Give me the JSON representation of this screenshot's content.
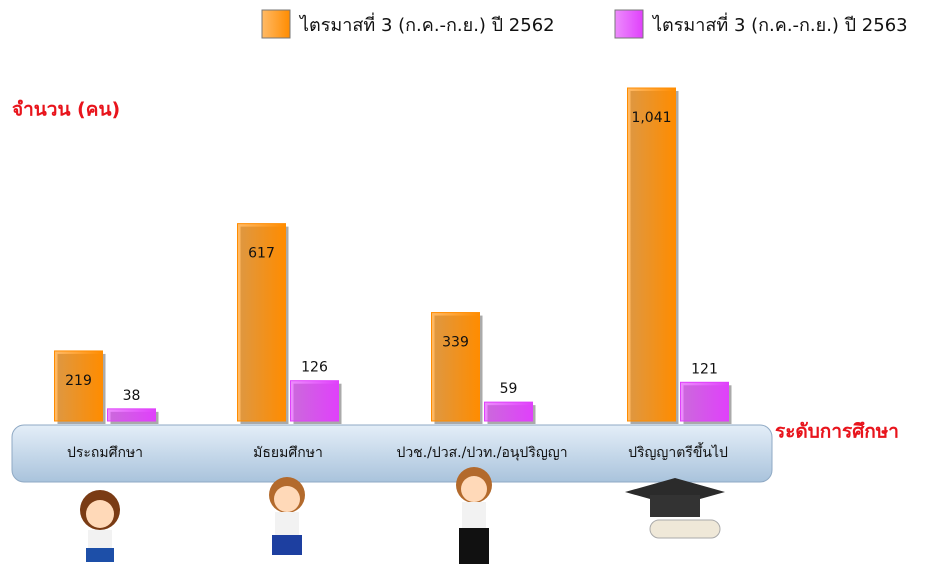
{
  "chart_data": {
    "type": "bar",
    "y_label": "จำนวน (คน)",
    "x_label": "ระดับการศึกษา",
    "categories": [
      "ประถมศึกษา",
      "มัธยมศึกษา",
      "ปวช./ปวส./ปวท./อนุปริญญา",
      "ปริญญาตรีขึ้นไป"
    ],
    "series": [
      {
        "name": "ไตรมาสที่ 3 (ก.ค.-ก.ย.) ปี 2562",
        "color": "#ff8c00",
        "values": [
          219,
          617,
          339,
          1041
        ],
        "value_labels": [
          "219",
          "617",
          "339",
          "1,041"
        ]
      },
      {
        "name": "ไตรมาสที่ 3 (ก.ค.-ก.ย.) ปี 2563",
        "color": "#e040fb",
        "values": [
          38,
          126,
          59,
          121
        ]
      }
    ],
    "legend": "top-right"
  }
}
